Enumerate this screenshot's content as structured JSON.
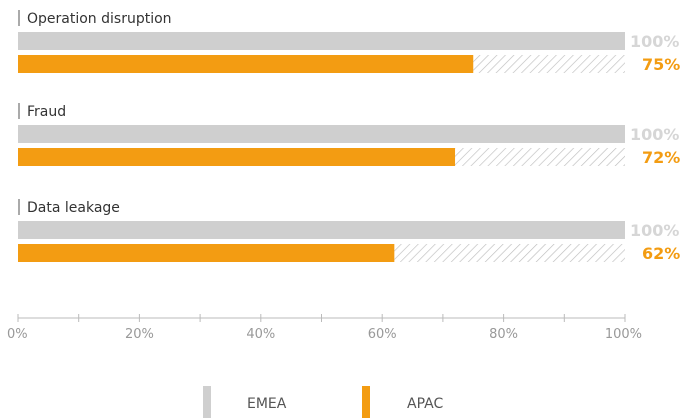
{
  "chart_data": {
    "type": "bar",
    "orientation": "horizontal",
    "categories": [
      "Operation disruption",
      "Fraud",
      "Data leakage"
    ],
    "series": [
      {
        "name": "EMEA",
        "values": [
          100,
          100,
          100
        ],
        "value_labels": [
          "100%",
          "100%",
          "100%"
        ]
      },
      {
        "name": "APAC",
        "values": [
          75,
          72,
          62
        ],
        "value_labels": [
          "75%",
          "72%",
          "62%"
        ]
      }
    ],
    "xlim": [
      0,
      100
    ],
    "x_ticks": [
      0,
      20,
      40,
      60,
      80,
      100
    ],
    "x_tick_labels": [
      "0%",
      "20%",
      "40%",
      "60%",
      "80%",
      "100%"
    ],
    "remainder_style": "hatched",
    "legend_position": "bottom",
    "grid": false
  },
  "colors": {
    "emea": "#cfcfcf",
    "apac": "#f39c12",
    "remainder_bg": "#ffffff",
    "remainder_hatch": "#bdbdbd",
    "axis": "#bbbbbb"
  }
}
